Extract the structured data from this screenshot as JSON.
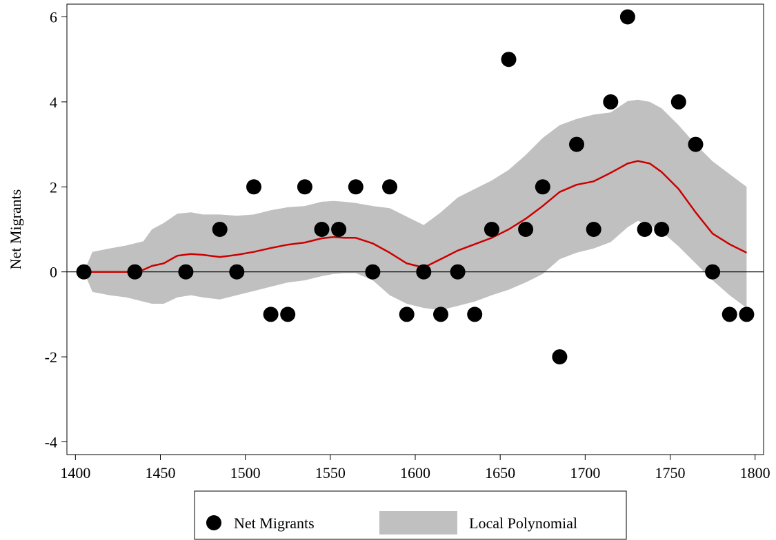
{
  "chart_data": {
    "type": "scatter",
    "xlabel": "",
    "ylabel": "Net Migrants",
    "xlim": [
      1395,
      1805
    ],
    "ylim": [
      -4.3,
      6.3
    ],
    "x_ticks": [
      1400,
      1450,
      1500,
      1550,
      1600,
      1650,
      1700,
      1750,
      1800
    ],
    "y_ticks": [
      -4,
      -2,
      0,
      2,
      4,
      6
    ],
    "zero_line": true,
    "grid": false,
    "legend_position": "bottom",
    "legend": [
      "Net Migrants",
      "Local Polynomial"
    ],
    "colors": {
      "points": "#000000",
      "fit_line": "#cc0000",
      "ci_band": "#c0c0c0",
      "axis": "#000000"
    },
    "series": [
      {
        "name": "Net Migrants",
        "kind": "scatter",
        "x": [
          1405,
          1435,
          1465,
          1485,
          1495,
          1505,
          1515,
          1525,
          1535,
          1545,
          1555,
          1565,
          1575,
          1585,
          1595,
          1605,
          1615,
          1625,
          1635,
          1645,
          1655,
          1665,
          1675,
          1685,
          1695,
          1705,
          1715,
          1725,
          1735,
          1745,
          1755,
          1765,
          1775,
          1785,
          1795
        ],
        "y": [
          0,
          0,
          0,
          1,
          0,
          2,
          -1,
          -1,
          2,
          1,
          1,
          2,
          0,
          2,
          -1,
          0,
          -1,
          0,
          -1,
          1,
          5,
          1,
          2,
          -2,
          3,
          1,
          4,
          6,
          1,
          1,
          4,
          3,
          0,
          -1,
          -1
        ]
      },
      {
        "name": "Local Polynomial",
        "kind": "line_with_band",
        "x": [
          1405,
          1410,
          1420,
          1430,
          1440,
          1445,
          1452,
          1460,
          1468,
          1475,
          1485,
          1495,
          1505,
          1515,
          1525,
          1535,
          1545,
          1552,
          1558,
          1565,
          1575,
          1585,
          1595,
          1605,
          1615,
          1625,
          1635,
          1645,
          1655,
          1665,
          1675,
          1685,
          1695,
          1705,
          1715,
          1725,
          1731,
          1738,
          1745,
          1755,
          1765,
          1775,
          1785,
          1795
        ],
        "y": [
          0,
          0,
          0,
          0,
          0.05,
          0.14,
          0.2,
          0.38,
          0.42,
          0.4,
          0.35,
          0.4,
          0.47,
          0.56,
          0.64,
          0.69,
          0.79,
          0.82,
          0.8,
          0.8,
          0.67,
          0.45,
          0.2,
          0.1,
          0.3,
          0.5,
          0.65,
          0.8,
          1.0,
          1.25,
          1.55,
          1.88,
          2.05,
          2.13,
          2.33,
          2.55,
          2.61,
          2.55,
          2.35,
          1.95,
          1.4,
          0.9,
          0.65,
          0.45
        ],
        "lower": [
          0,
          -0.47,
          -0.55,
          -0.6,
          -0.7,
          -0.75,
          -0.75,
          -0.6,
          -0.55,
          -0.6,
          -0.65,
          -0.55,
          -0.45,
          -0.35,
          -0.25,
          -0.2,
          -0.1,
          -0.05,
          -0.03,
          -0.03,
          -0.2,
          -0.55,
          -0.75,
          -0.85,
          -0.9,
          -0.8,
          -0.7,
          -0.55,
          -0.42,
          -0.25,
          -0.05,
          0.3,
          0.45,
          0.55,
          0.7,
          1.05,
          1.2,
          1.1,
          0.95,
          0.6,
          0.2,
          -0.2,
          -0.55,
          -0.85
        ],
        "upper": [
          0,
          0.47,
          0.55,
          0.62,
          0.72,
          1.0,
          1.15,
          1.37,
          1.4,
          1.35,
          1.35,
          1.32,
          1.35,
          1.45,
          1.52,
          1.55,
          1.65,
          1.67,
          1.65,
          1.62,
          1.55,
          1.5,
          1.3,
          1.1,
          1.4,
          1.75,
          1.95,
          2.15,
          2.4,
          2.75,
          3.15,
          3.45,
          3.6,
          3.7,
          3.75,
          4.02,
          4.05,
          4.0,
          3.85,
          3.45,
          3.0,
          2.6,
          2.3,
          2.0
        ]
      }
    ]
  }
}
